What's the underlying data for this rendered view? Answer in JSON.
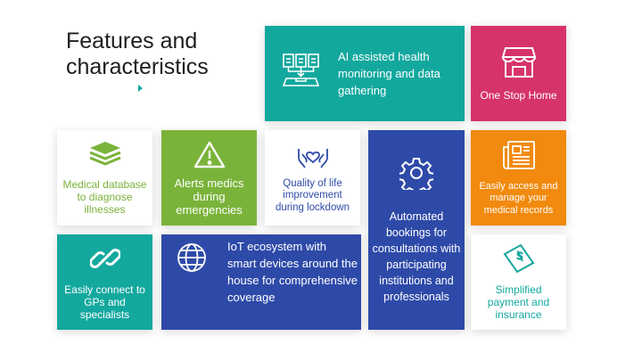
{
  "title": "Features and characteristics",
  "colors": {
    "teal": "#13a89e",
    "pink": "#d6336c",
    "green": "#7ab33a",
    "blue": "#2e4aa8",
    "orange": "#f18a0e"
  },
  "tiles": {
    "ai_health": {
      "label": "AI assisted health monitoring and data gathering",
      "icon": "documents-tray-icon"
    },
    "one_stop_home": {
      "label": "One Stop Home",
      "icon": "storefront-icon"
    },
    "medical_database": {
      "label": "Medical database to diagnose illnesses",
      "icon": "layers-stack-icon"
    },
    "alerts": {
      "label": "Alerts medics during emergencies",
      "icon": "warning-triangle-icon"
    },
    "quality_of_life": {
      "label": "Quality of life improvement during lockdown",
      "icon": "heart-hands-icon"
    },
    "automated_bookings": {
      "label": "Automated bookings for consultations with participating institutions and professionals",
      "icon": "gear-icon"
    },
    "easy_access": {
      "label": "Easily access and manage your medical records",
      "icon": "newspaper-icon"
    },
    "connect_gps": {
      "label": "Easily connect to GPs and specialists",
      "icon": "chain-link-icon"
    },
    "iot": {
      "label": "IoT ecosystem with smart devices around the house for comprehensive coverage",
      "icon": "globe-icon"
    },
    "payment": {
      "label": "Simplified payment and insurance",
      "icon": "dollar-bill-icon"
    }
  }
}
